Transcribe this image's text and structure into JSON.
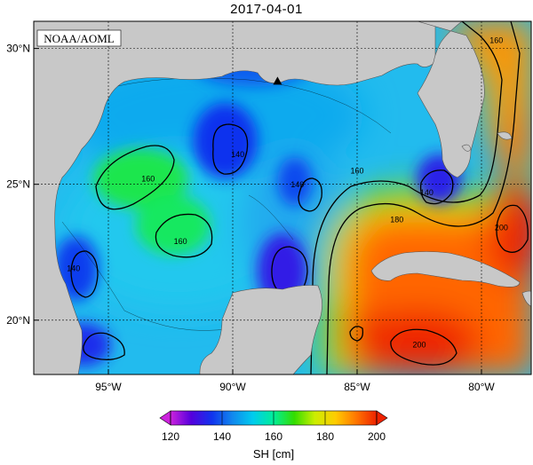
{
  "title": "2017-04-01",
  "credit": "NOAA/AOML",
  "colors": {
    "land": "#c8c8c8",
    "frame": "#000000",
    "grid": "#000000"
  },
  "map": {
    "lon_range": [
      -98,
      -78
    ],
    "lat_range": [
      18,
      31
    ],
    "lon_ticks": [
      {
        "value": -95,
        "label": "95°W"
      },
      {
        "value": -90,
        "label": "90°W"
      },
      {
        "value": -85,
        "label": "85°W"
      },
      {
        "value": -80,
        "label": "80°W"
      }
    ],
    "lat_ticks": [
      {
        "value": 30,
        "label": "30°N"
      },
      {
        "value": 25,
        "label": "25°N"
      },
      {
        "value": 20,
        "label": "20°N"
      }
    ],
    "contour_labels": [
      {
        "text": "160",
        "lon": -79.4,
        "lat": 30.2
      },
      {
        "text": "140",
        "lon": -89.8,
        "lat": 26.0
      },
      {
        "text": "160",
        "lon": -93.4,
        "lat": 25.1
      },
      {
        "text": "140",
        "lon": -87.4,
        "lat": 24.9
      },
      {
        "text": "160",
        "lon": -85.0,
        "lat": 25.4
      },
      {
        "text": "140",
        "lon": -82.2,
        "lat": 24.6
      },
      {
        "text": "160",
        "lon": -92.1,
        "lat": 22.8
      },
      {
        "text": "180",
        "lon": -83.4,
        "lat": 23.6
      },
      {
        "text": "200",
        "lon": -79.2,
        "lat": 23.3
      },
      {
        "text": "140",
        "lon": -96.4,
        "lat": 21.8
      },
      {
        "text": "200",
        "lon": -82.5,
        "lat": 19.0
      }
    ],
    "marker": {
      "name": "triangle",
      "lon": -88.2,
      "lat": 28.8
    }
  },
  "colorbar": {
    "label": "SH [cm]",
    "min": 120,
    "max": 200,
    "ticks": [
      {
        "value": 120,
        "label": "120"
      },
      {
        "value": 140,
        "label": "140"
      },
      {
        "value": 160,
        "label": "160"
      },
      {
        "value": 180,
        "label": "180"
      },
      {
        "value": 200,
        "label": "200"
      }
    ],
    "stops": [
      "#cc22dd",
      "#5500dd",
      "#1133ee",
      "#1188ee",
      "#00ccee",
      "#00ee99",
      "#33dd00",
      "#ccee00",
      "#ffcc00",
      "#ff7700",
      "#ee2200"
    ]
  },
  "eddies": [
    {
      "value": 136,
      "lon": -90.3,
      "lat": 26.6,
      "rx": 1.3,
      "ry": 1.4
    },
    {
      "value": 164,
      "lon": -93.7,
      "lat": 25.2,
      "rx": 1.9,
      "ry": 1.1
    },
    {
      "value": 163,
      "lon": -92.4,
      "lat": 23.5,
      "rx": 1.5,
      "ry": 1.1
    },
    {
      "value": 137,
      "lon": -96.3,
      "lat": 21.9,
      "rx": 0.9,
      "ry": 1.2
    },
    {
      "value": 132,
      "lon": -88.0,
      "lat": 21.8,
      "rx": 1.0,
      "ry": 1.4
    },
    {
      "value": 138,
      "lon": -87.5,
      "lat": 25.1,
      "rx": 0.7,
      "ry": 0.9
    },
    {
      "value": 135,
      "lon": -96.0,
      "lat": 19.1,
      "rx": 1.1,
      "ry": 0.8
    },
    {
      "value": 133,
      "lon": -81.7,
      "lat": 25.2,
      "rx": 0.9,
      "ry": 0.9
    },
    {
      "value": 140,
      "lon": -89.2,
      "lat": 29.5,
      "rx": 2.5,
      "ry": 0.9
    }
  ]
}
